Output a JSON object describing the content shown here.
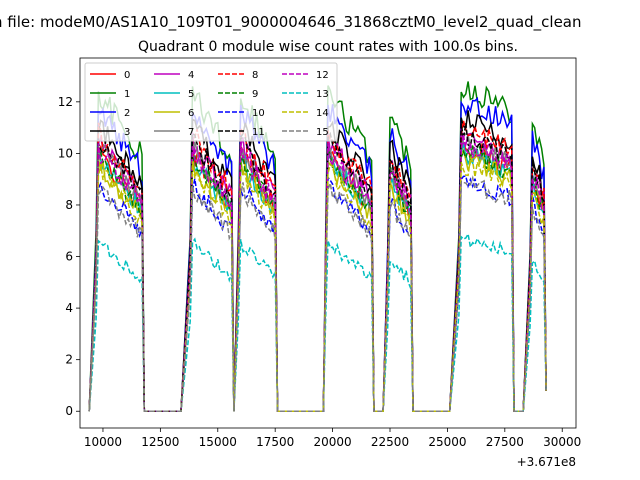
{
  "figure": {
    "suptitle": "n file: modeM0/AS1A10_109T01_9000004646_31868cztM0_level2_quad_clean",
    "offset_label": "+3.671e8"
  },
  "chart_data": {
    "type": "line",
    "title": "Quadrant 0 module wise count rates with 100.0s bins.",
    "xlabel": "",
    "ylabel": "",
    "xlim": [
      9000,
      30600
    ],
    "ylim": [
      -0.65,
      13.7
    ],
    "x_offset": 367100000,
    "x_ticks": [
      10000,
      12500,
      15000,
      17500,
      20000,
      22500,
      25000,
      27500,
      30000
    ],
    "x_tick_labels": [
      "10000",
      "12500",
      "15000",
      "17500",
      "20000",
      "22500",
      "25000",
      "27500",
      "30000"
    ],
    "y_ticks": [
      0,
      2,
      4,
      6,
      8,
      10,
      12
    ],
    "y_tick_labels": [
      "0",
      "2",
      "4",
      "6",
      "8",
      "10",
      "12"
    ],
    "grid": false,
    "legend_placement": "top-left",
    "legend_columns": 4,
    "segments": [
      {
        "start": 9400,
        "end": 9700
      },
      {
        "start": 9700,
        "end": 11800
      },
      {
        "start": 11800,
        "end": 13800
      },
      {
        "start": 13800,
        "end": 15700
      },
      {
        "start": 15700,
        "end": 15900
      },
      {
        "start": 15900,
        "end": 17600
      },
      {
        "start": 17600,
        "end": 19700
      },
      {
        "start": 19700,
        "end": 21800
      },
      {
        "start": 21800,
        "end": 22400
      },
      {
        "start": 22400,
        "end": 23500
      },
      {
        "start": 23500,
        "end": 25500
      },
      {
        "start": 25500,
        "end": 27900
      },
      {
        "start": 27900,
        "end": 28600
      },
      {
        "start": 28600,
        "end": 29300
      }
    ],
    "series": [
      {
        "name": "0",
        "color": "#ff0000",
        "dash": "solid",
        "level": 9.2
      },
      {
        "name": "1",
        "color": "#008000",
        "dash": "solid",
        "level": 11.4
      },
      {
        "name": "2",
        "color": "#0000ff",
        "dash": "solid",
        "level": 10.8
      },
      {
        "name": "3",
        "color": "#000000",
        "dash": "solid",
        "level": 10.2
      },
      {
        "name": "4",
        "color": "#bf00bf",
        "dash": "solid",
        "level": 9.6
      },
      {
        "name": "5",
        "color": "#00bfbf",
        "dash": "solid",
        "level": 9.0
      },
      {
        "name": "6",
        "color": "#bfbf00",
        "dash": "solid",
        "level": 8.8
      },
      {
        "name": "7",
        "color": "#808080",
        "dash": "solid",
        "level": 9.4
      },
      {
        "name": "8",
        "color": "#ff0000",
        "dash": "dashed",
        "level": 9.9
      },
      {
        "name": "9",
        "color": "#008000",
        "dash": "dashed",
        "level": 9.1
      },
      {
        "name": "10",
        "color": "#0000ff",
        "dash": "dashed",
        "level": 8.1
      },
      {
        "name": "11",
        "color": "#000000",
        "dash": "dashed",
        "level": 9.7
      },
      {
        "name": "12",
        "color": "#bf00bf",
        "dash": "dashed",
        "level": 9.3
      },
      {
        "name": "13",
        "color": "#00bfbf",
        "dash": "dashed",
        "level": 6.0
      },
      {
        "name": "14",
        "color": "#bfbf00",
        "dash": "dashed",
        "level": 8.6
      },
      {
        "name": "15",
        "color": "#808080",
        "dash": "dashed",
        "level": 8.0
      }
    ]
  }
}
